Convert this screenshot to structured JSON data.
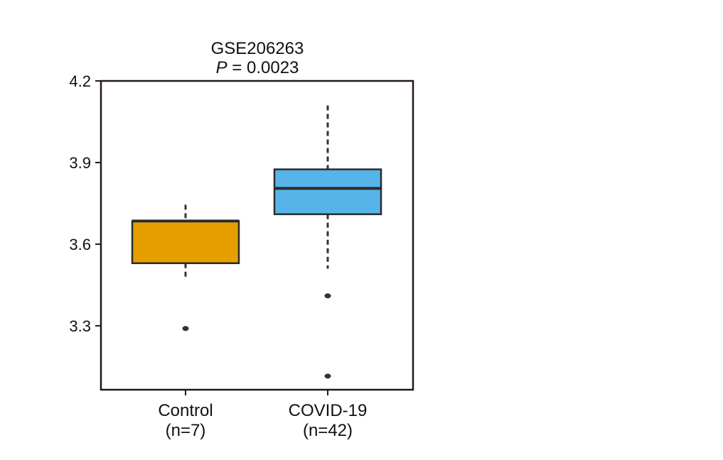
{
  "chart_data": {
    "type": "box",
    "title": "GSE206263",
    "subtitle": {
      "italic_prefix": "P",
      "rest": " = 0.0023"
    },
    "xlabel": "",
    "ylabel": "",
    "ylim": [
      3.065,
      4.2
    ],
    "yticks": [
      {
        "value": 3.3,
        "label": "3.3"
      },
      {
        "value": 3.6,
        "label": "3.6"
      },
      {
        "value": 3.9,
        "label": "3.9"
      },
      {
        "value": 4.2,
        "label": "4.2"
      }
    ],
    "grid": false,
    "legend": "none",
    "groups": [
      {
        "category": "Control",
        "n_label": "(n=7)",
        "color": "#E5A000",
        "whisker_low": 3.47,
        "q1": 3.53,
        "median": 3.685,
        "q3": 3.685,
        "whisker_high": 3.745,
        "outliers": [
          3.29
        ]
      },
      {
        "category": "COVID-19",
        "n_label": "(n=42)",
        "color": "#56B4E9",
        "whisker_low": 3.51,
        "q1": 3.71,
        "median": 3.805,
        "q3": 3.875,
        "whisker_high": 4.11,
        "outliers": [
          3.41,
          3.115
        ]
      }
    ]
  }
}
